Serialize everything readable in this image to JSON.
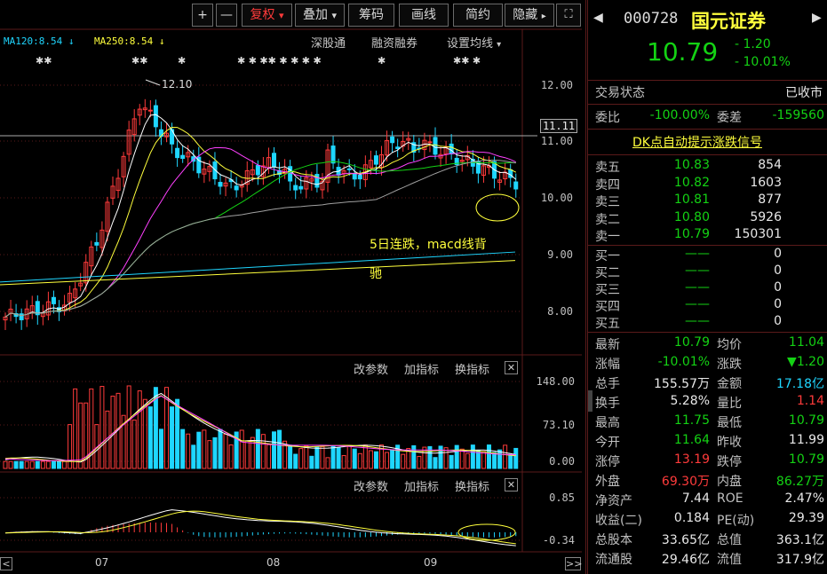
{
  "toolbar": {
    "plus": "+",
    "minus": "—",
    "fuquan": "复权",
    "fuquan_arrow": "▾",
    "diejia": "叠加",
    "diejia_arrow": "▾",
    "chouma": "筹码",
    "huaxian": "画线",
    "jianyue": "简约",
    "yincang": "隐藏",
    "yincang_arrow": "▸",
    "expand": "⛶"
  },
  "ma_legend": {
    "ma120": "MA120:8.54",
    "ma250": "MA250:8.54",
    "arrow": "↓"
  },
  "chart_menu": {
    "shengutong": "深股通",
    "rongzi": "融资融券",
    "settings": "设置均线",
    "settings_arrow": "▾"
  },
  "star_marks": [
    "✱✱",
    "✱✱",
    "✱",
    "✱ ✱ ✱✱ ✱ ✱ ✱ ✱",
    "✱",
    "✱✱ ✱"
  ],
  "high_label": "12.10",
  "price_axis": [
    "12.00",
    "11.00",
    "10.00",
    "9.00",
    "8.00"
  ],
  "current_line_label": "11.11",
  "annotation": {
    "line1": "5日连跌，macd线背",
    "line2": "驰"
  },
  "volume_panel": {
    "btn_params": "改参数",
    "btn_add": "加指标",
    "btn_switch": "换指标",
    "close": "✕",
    "axis": [
      "148.00",
      "73.10",
      "0.00"
    ]
  },
  "macd_panel": {
    "btn_params": "改参数",
    "btn_add": "加指标",
    "btn_switch": "换指标",
    "close": "✕",
    "axis": [
      "0.85",
      "-0.34"
    ]
  },
  "x_axis": [
    "07",
    "08",
    "09"
  ],
  "scroll": {
    "left": "<",
    "right": ">>"
  },
  "header": {
    "nav_left": "◀",
    "nav_right": "▶",
    "code": "000728",
    "name": "国元证券",
    "price": "10.79",
    "change": "- 1.20",
    "change_pct": "- 10.01%"
  },
  "status": {
    "label": "交易状态",
    "value": "已收市"
  },
  "weibi": {
    "label": "委比",
    "value": "-100.00%",
    "label2": "委差",
    "value2": "-159560"
  },
  "dk_signal": "DK点自动提示涨跌信号",
  "asks": [
    {
      "label": "卖五",
      "price": "10.83",
      "vol": "854"
    },
    {
      "label": "卖四",
      "price": "10.82",
      "vol": "1603"
    },
    {
      "label": "卖三",
      "price": "10.81",
      "vol": "877"
    },
    {
      "label": "卖二",
      "price": "10.80",
      "vol": "5926"
    },
    {
      "label": "卖一",
      "price": "10.79",
      "vol": "150301"
    }
  ],
  "bids": [
    {
      "label": "买一",
      "price": "——",
      "vol": "0"
    },
    {
      "label": "买二",
      "price": "——",
      "vol": "0"
    },
    {
      "label": "买三",
      "price": "——",
      "vol": "0"
    },
    {
      "label": "买四",
      "price": "——",
      "vol": "0"
    },
    {
      "label": "买五",
      "price": "——",
      "vol": "0"
    }
  ],
  "stats": [
    {
      "l1": "最新",
      "v1": "10.79",
      "c1": "g",
      "l2": "均价",
      "v2": "11.04",
      "c2": "g"
    },
    {
      "l1": "涨幅",
      "v1": "-10.01%",
      "c1": "g",
      "l2": "涨跌",
      "v2": "▼1.20",
      "c2": "g"
    },
    {
      "l1": "总手",
      "v1": "155.57万",
      "c1": "w",
      "l2": "金额",
      "v2": "17.18亿",
      "c2": "c"
    },
    {
      "l1": "换手",
      "v1": "5.28%",
      "c1": "w",
      "l2": "量比",
      "v2": "1.14",
      "c2": "r"
    },
    {
      "l1": "最高",
      "v1": "11.75",
      "c1": "g",
      "l2": "最低",
      "v2": "10.79",
      "c2": "g"
    },
    {
      "l1": "今开",
      "v1": "11.64",
      "c1": "g",
      "l2": "昨收",
      "v2": "11.99",
      "c2": "w"
    },
    {
      "l1": "涨停",
      "v1": "13.19",
      "c1": "r",
      "l2": "跌停",
      "v2": "10.79",
      "c2": "g"
    },
    {
      "l1": "外盘",
      "v1": "69.30万",
      "c1": "r",
      "l2": "内盘",
      "v2": "86.27万",
      "c2": "g"
    },
    {
      "l1": "净资产",
      "v1": "7.44",
      "c1": "w",
      "l2": "ROE",
      "v2": "2.47%",
      "c2": "w"
    },
    {
      "l1": "收益(二)",
      "v1": "0.184",
      "c1": "w",
      "l2": "PE(动)",
      "v2": "29.39",
      "c2": "w"
    },
    {
      "l1": "总股本",
      "v1": "33.65亿",
      "c1": "w",
      "l2": "总值",
      "v2": "363.1亿",
      "c2": "w"
    },
    {
      "l1": "流通股",
      "v1": "29.46亿",
      "c1": "w",
      "l2": "流值",
      "v2": "317.9亿",
      "c2": "w"
    }
  ],
  "colors": {
    "up": "#ff3b3b",
    "down": "#1fd6ff",
    "green": "#14d214",
    "yellow": "#ffff3c",
    "magenta": "#ff40ff",
    "panel_border": "#5a1a1a"
  }
}
